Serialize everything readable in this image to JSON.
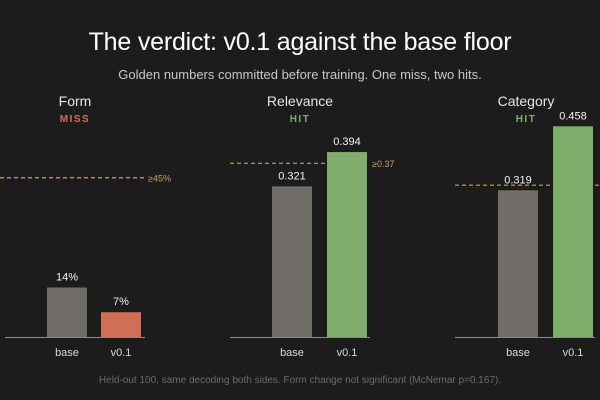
{
  "header": {
    "title": "The verdict: v0.1 against the base floor",
    "subtitle": "Golden numbers committed before training. One miss, two hits."
  },
  "footnote": "Held-out 100, same decoding both sides. Form change not significant (McNemar p=0.167).",
  "colors": {
    "background": "#1c1c1c",
    "base_bar": "#6f6b66",
    "hit_bar": "#7fae6c",
    "miss_bar": "#d06f56",
    "hit_text": "#7fae6c",
    "miss_text": "#d06f56",
    "threshold_line": "#c9a25b",
    "axis": "#8a8a8a"
  },
  "chart_data": [
    {
      "type": "bar",
      "title": "Form",
      "verdict": "MISS",
      "categories": [
        "base",
        "v0.1"
      ],
      "values": [
        0.14,
        0.07
      ],
      "value_labels": [
        "14%",
        "7%"
      ],
      "bar_colors": [
        "#6f6b66",
        "#d06f56"
      ],
      "threshold": 0.45,
      "threshold_label": "≥45%",
      "ylim": [
        0,
        0.65
      ]
    },
    {
      "type": "bar",
      "title": "Relevance",
      "verdict": "HIT",
      "categories": [
        "base",
        "v0.1"
      ],
      "values": [
        0.321,
        0.394
      ],
      "value_labels": [
        "0.321",
        "0.394"
      ],
      "bar_colors": [
        "#6f6b66",
        "#7fae6c"
      ],
      "threshold": 0.37,
      "threshold_label": "≥0.37",
      "ylim": [
        0,
        0.49
      ]
    },
    {
      "type": "bar",
      "title": "Category",
      "verdict": "HIT",
      "categories": [
        "base",
        "v0.1"
      ],
      "values": [
        0.319,
        0.458
      ],
      "value_labels": [
        "0.319",
        "0.458"
      ],
      "bar_colors": [
        "#6f6b66",
        "#7fae6c"
      ],
      "threshold": 0.33,
      "threshold_label": "",
      "ylim": [
        0,
        0.5
      ]
    }
  ]
}
